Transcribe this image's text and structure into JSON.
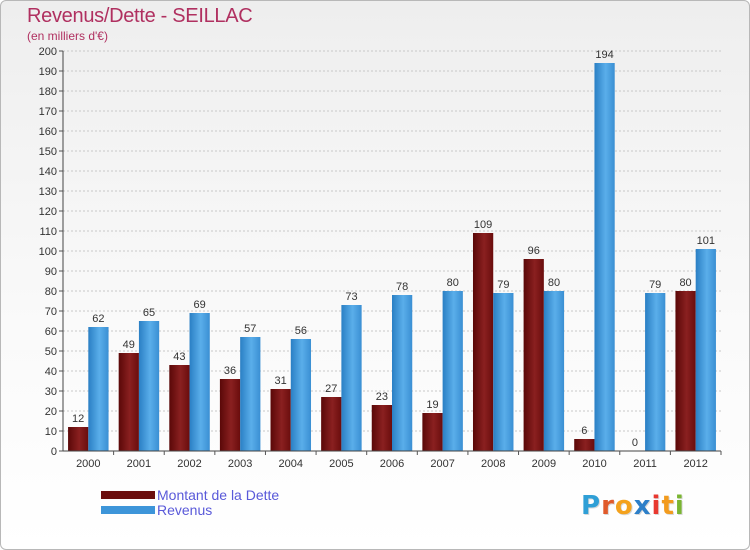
{
  "header": {
    "title": "Revenus/Dette - SEILLAC",
    "subtitle": "(en milliers d'€)"
  },
  "legend": {
    "items": [
      {
        "label": "Montant de la Dette",
        "color": "#6b0e0e"
      },
      {
        "label": "Revenus",
        "color": "#3d95d9"
      }
    ]
  },
  "logo": {
    "letters": [
      "P",
      "r",
      "o",
      "x",
      "i",
      "t",
      "i"
    ],
    "colors": [
      "#2f9fd6",
      "#e05a2b",
      "#f4a21d",
      "#2d7fc8",
      "#e8382f",
      "#f29b1e",
      "#7ab532"
    ]
  },
  "chart_data": {
    "type": "bar",
    "title": "Revenus/Dette - SEILLAC",
    "ylabel": "(en milliers d'€)",
    "xlabel": "",
    "categories": [
      "2000",
      "2001",
      "2002",
      "2003",
      "2004",
      "2005",
      "2006",
      "2007",
      "2008",
      "2009",
      "2010",
      "2011",
      "2012"
    ],
    "series": [
      {
        "name": "Montant de la Dette",
        "color": "#7a1414",
        "values": [
          12,
          49,
          43,
          36,
          31,
          27,
          23,
          19,
          109,
          96,
          6,
          0,
          80
        ]
      },
      {
        "name": "Revenus",
        "color": "#3d95d9",
        "values": [
          62,
          65,
          69,
          57,
          56,
          73,
          78,
          80,
          79,
          80,
          194,
          79,
          101
        ]
      }
    ],
    "ylim": [
      0,
      200
    ],
    "ytick_step": 10,
    "grid": true,
    "legend_position": "bottom-left"
  }
}
